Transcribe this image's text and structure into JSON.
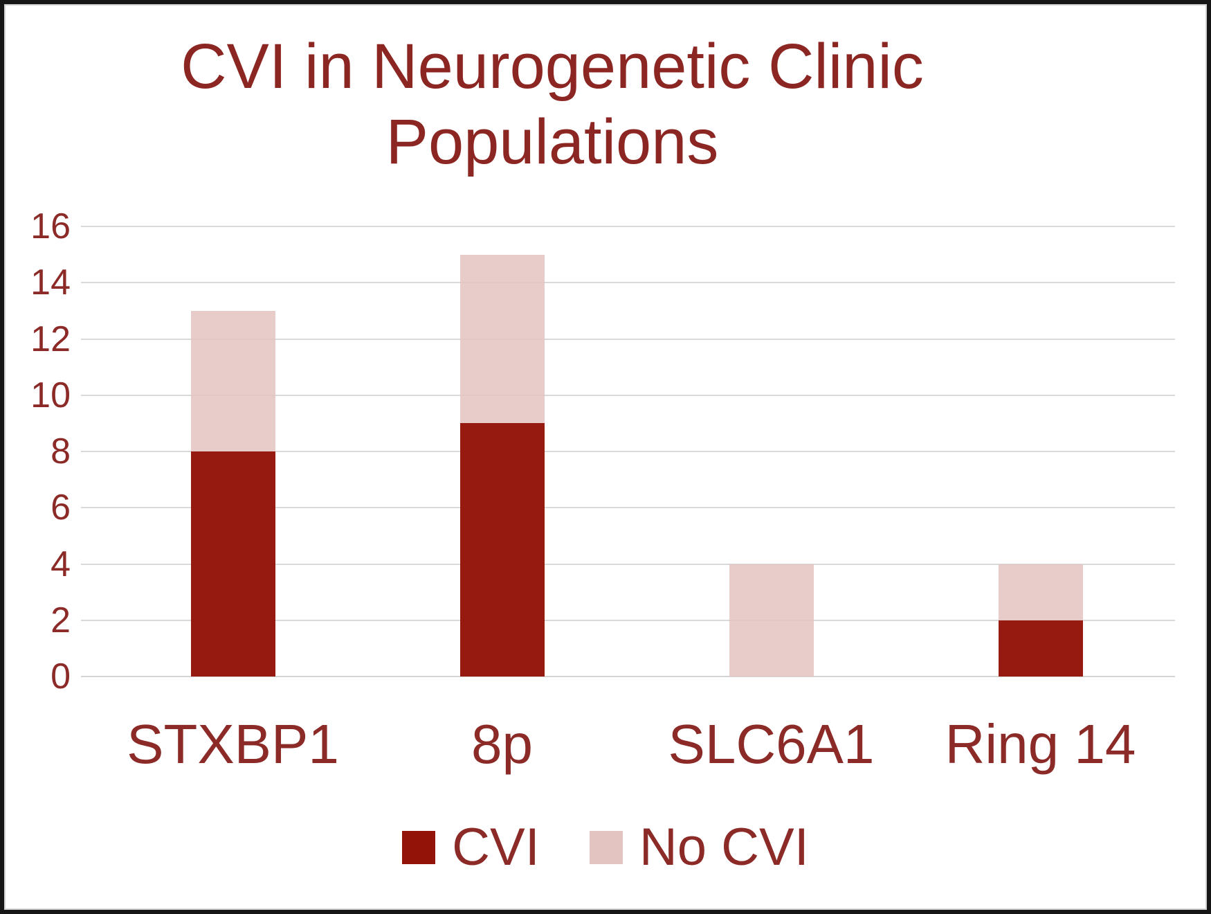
{
  "chart_data": {
    "type": "bar",
    "stacked": true,
    "title": "CVI in Neurogenetic Clinic Populations",
    "categories": [
      "STXBP1",
      "8p",
      "SLC6A1",
      "Ring 14"
    ],
    "series": [
      {
        "name": "CVI",
        "color": "#941308",
        "values": [
          8,
          9,
          0,
          2
        ]
      },
      {
        "name": "No CVI",
        "color": "#E3C4C0",
        "values": [
          5,
          6,
          4,
          2
        ]
      }
    ],
    "totals": [
      13,
      15,
      4,
      4
    ],
    "ylim": [
      0,
      16
    ],
    "yticks": [
      0,
      2,
      4,
      6,
      8,
      10,
      12,
      14,
      16
    ],
    "grid": "horizontal",
    "legend_position": "bottom",
    "text_color": "#8C2622",
    "gridline_color": "#D9D9D9"
  }
}
